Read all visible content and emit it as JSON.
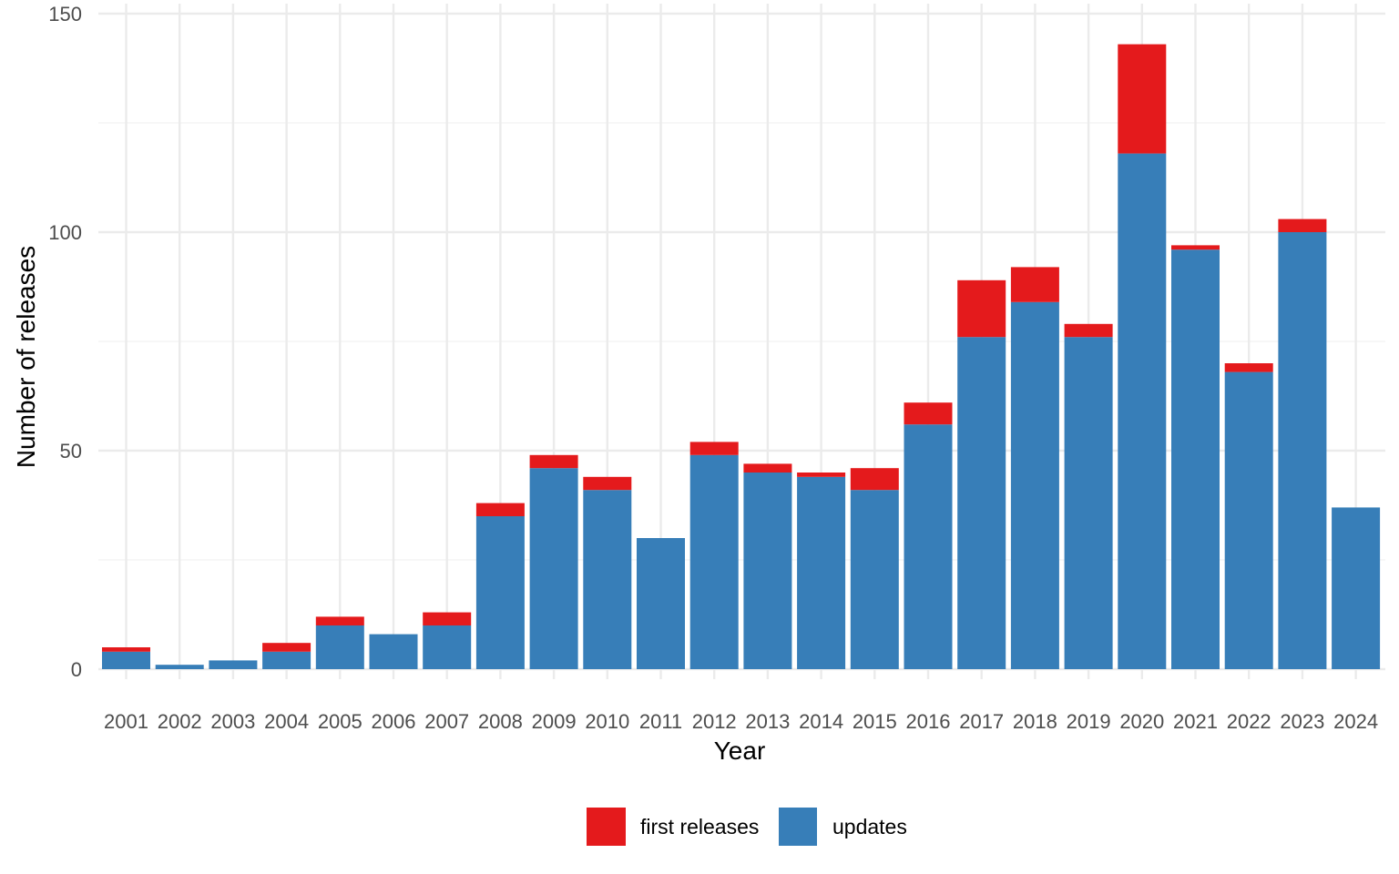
{
  "chart_data": {
    "type": "bar",
    "stacked": true,
    "title": "",
    "xlabel": "Year",
    "ylabel": "Number of releases",
    "categories": [
      "2001",
      "2002",
      "2003",
      "2004",
      "2005",
      "2006",
      "2007",
      "2008",
      "2009",
      "2010",
      "2011",
      "2012",
      "2013",
      "2014",
      "2015",
      "2016",
      "2017",
      "2018",
      "2019",
      "2020",
      "2021",
      "2022",
      "2023",
      "2024"
    ],
    "series": [
      {
        "name": "updates",
        "color": "#377EB8",
        "values": [
          4,
          1,
          2,
          4,
          10,
          8,
          10,
          35,
          46,
          41,
          30,
          49,
          45,
          44,
          41,
          56,
          76,
          84,
          76,
          118,
          96,
          68,
          100,
          37
        ]
      },
      {
        "name": "first releases",
        "color": "#E41A1C",
        "values": [
          1,
          0,
          0,
          2,
          2,
          0,
          3,
          3,
          3,
          3,
          0,
          3,
          2,
          1,
          5,
          5,
          13,
          8,
          3,
          25,
          1,
          2,
          3,
          0
        ]
      }
    ],
    "ylim": [
      0,
      150
    ],
    "yticks": [
      0,
      50,
      100,
      150
    ],
    "grid": true,
    "legend": {
      "position": "bottom",
      "entries": [
        {
          "label": "first releases",
          "color": "#E41A1C"
        },
        {
          "label": "updates",
          "color": "#377EB8"
        }
      ]
    }
  }
}
